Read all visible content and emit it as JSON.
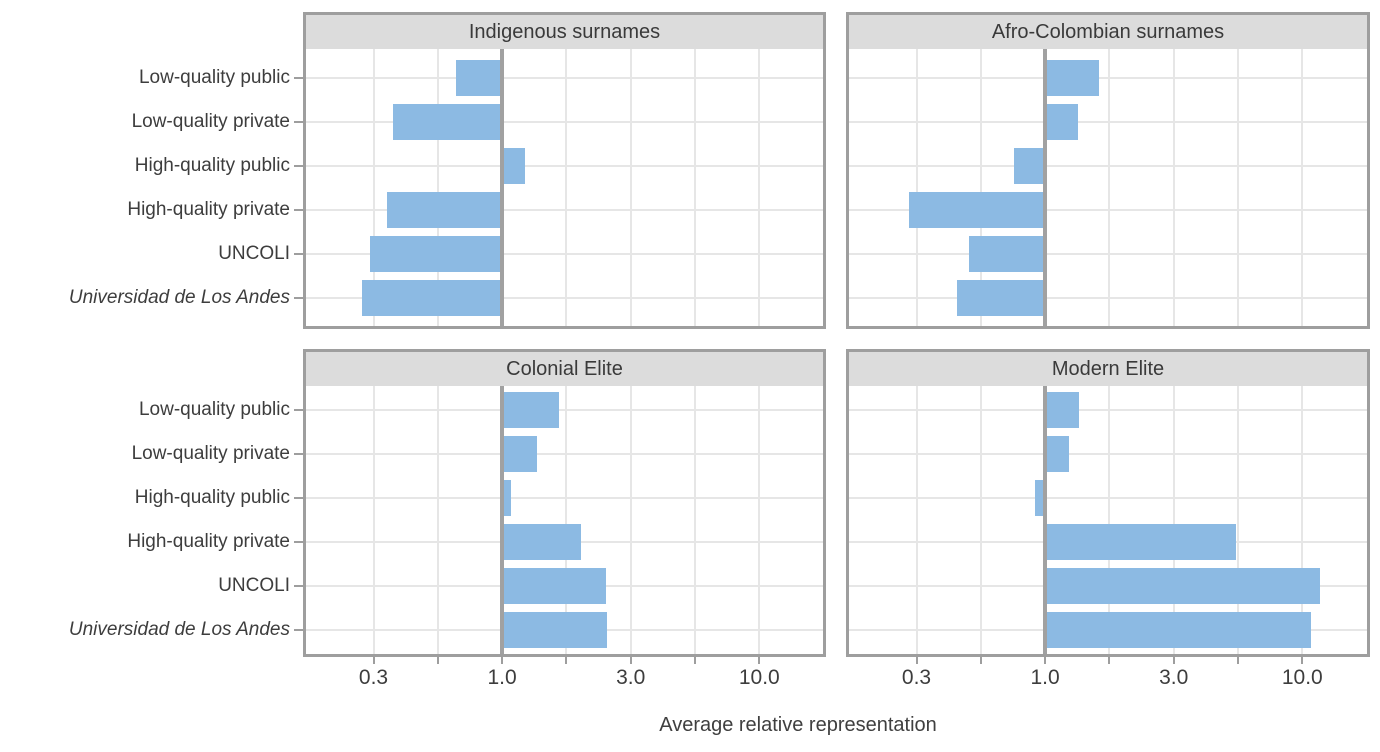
{
  "chart_data": {
    "type": "bar",
    "orientation": "horizontal",
    "x_scale": "log",
    "title": "",
    "xlabel": "Average relative representation",
    "ylabel": "",
    "categories": [
      "Low-quality public",
      "Low-quality private",
      "High-quality public",
      "High-quality private",
      "UNCOLI",
      "Universidad de Los Andes"
    ],
    "italic_categories": [
      "Universidad de Los Andes"
    ],
    "facets": [
      {
        "title": "Indigenous surnames",
        "values": [
          0.65,
          0.36,
          1.22,
          0.34,
          0.29,
          0.27
        ]
      },
      {
        "title": "Afro-Colombian surnames",
        "values": [
          1.59,
          1.32,
          0.75,
          0.28,
          0.49,
          0.44
        ]
      },
      {
        "title": "Colonial Elite",
        "values": [
          1.63,
          1.35,
          1.08,
          1.96,
          2.43,
          2.46
        ]
      },
      {
        "title": "Modern Elite",
        "values": [
          1.34,
          1.23,
          0.91,
          5.4,
          11.8,
          10.9
        ]
      }
    ],
    "x_tick_values": [
      0.3,
      1.0,
      3.0,
      10.0
    ],
    "x_tick_labels": [
      "0.3",
      "1.0",
      "3.0",
      "10.0"
    ],
    "reference_line": 1.0,
    "grid": true,
    "legend": "none",
    "colors": {
      "bar": "#8cbae3",
      "strip_background": "#dcdcdc",
      "panel_border": "#9e9e9e",
      "reference_line": "#a1a1a1",
      "gridline": "#e6e6e6",
      "text": "#3d3d3d",
      "tick": "#9e9e9e",
      "background": "#ffffff"
    }
  }
}
